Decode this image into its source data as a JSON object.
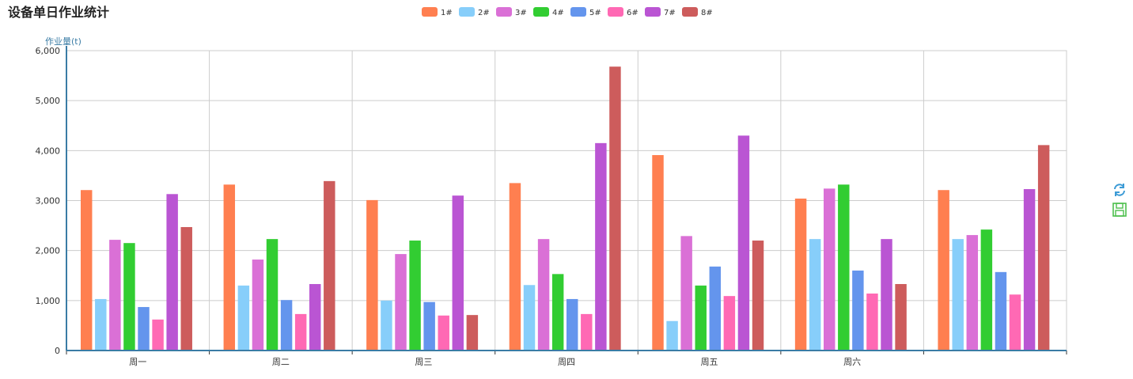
{
  "chart_data": {
    "type": "bar",
    "title": "设备单日作业统计",
    "y_label": "作业量(t)",
    "categories": [
      "周一",
      "周二",
      "周三",
      "周四",
      "周五",
      "周六",
      null
    ],
    "series": [
      {
        "name": "1#",
        "color": "#ff7f50",
        "values": [
          3210,
          3320,
          3010,
          3350,
          3910,
          3040,
          3210
        ]
      },
      {
        "name": "2#",
        "color": "#87cefa",
        "values": [
          1030,
          1300,
          1000,
          1310,
          590,
          2230,
          2230
        ]
      },
      {
        "name": "3#",
        "color": "#da70d6",
        "values": [
          2215,
          1820,
          1930,
          2230,
          2290,
          3240,
          2310
        ]
      },
      {
        "name": "4#",
        "color": "#32cd32",
        "values": [
          2150,
          2230,
          2200,
          1530,
          1300,
          3320,
          2420
        ]
      },
      {
        "name": "5#",
        "color": "#6495ed",
        "values": [
          870,
          1010,
          970,
          1030,
          1680,
          1600,
          1570
        ]
      },
      {
        "name": "6#",
        "color": "#ff69b4",
        "values": [
          620,
          730,
          700,
          730,
          1090,
          1140,
          1120
        ]
      },
      {
        "name": "7#",
        "color": "#ba55d3",
        "values": [
          3130,
          1330,
          3100,
          4150,
          4300,
          2230,
          3230
        ]
      },
      {
        "name": "8#",
        "color": "#cd5c5c",
        "values": [
          2470,
          3390,
          710,
          5680,
          2200,
          1330,
          4110
        ]
      }
    ],
    "ylim": [
      0,
      6000
    ],
    "yticks": [
      0,
      {
        "value": 1000,
        "label": "1,000"
      },
      {
        "value": 2000,
        "label": "2,000"
      },
      {
        "value": 3000,
        "label": "3,000"
      },
      {
        "value": 4000,
        "label": "4,000"
      },
      {
        "value": 5000,
        "label": "5,000"
      },
      {
        "value": 6000,
        "label": "6,000"
      }
    ],
    "grid": true
  }
}
